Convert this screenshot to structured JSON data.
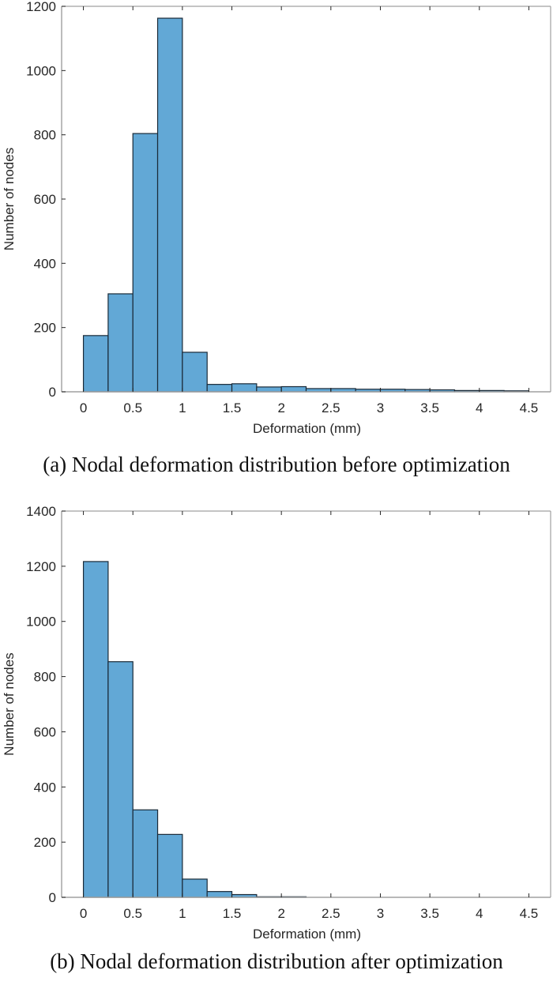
{
  "colors": {
    "bar_fill": "#62a8d6",
    "bar_edge": "#1a2a38",
    "axis": "#262626",
    "axis_box": "#a0a0a0"
  },
  "chart_data": [
    {
      "type": "bar",
      "subtype": "histogram",
      "caption": "(a) Nodal deformation distribution before optimization",
      "xlabel": "Deformation (mm)",
      "ylabel": "Number of nodes",
      "xlim": [
        -0.22,
        4.72
      ],
      "ylim": [
        0,
        1200
      ],
      "xticks": [
        0,
        0.5,
        1,
        1.5,
        2,
        2.5,
        3,
        3.5,
        4,
        4.5
      ],
      "xtick_labels": [
        "0",
        "0.5",
        "1",
        "1.5",
        "2",
        "2.5",
        "3",
        "3.5",
        "4",
        "4.5"
      ],
      "yticks": [
        0,
        200,
        400,
        600,
        800,
        1000,
        1200
      ],
      "ytick_labels": [
        "0",
        "200",
        "400",
        "600",
        "800",
        "1000",
        "1200"
      ],
      "bin_edges": [
        0,
        0.25,
        0.5,
        0.75,
        1.0,
        1.25,
        1.5,
        1.75,
        2.0,
        2.25,
        2.5,
        2.75,
        3.0,
        3.25,
        3.5,
        3.75,
        4.0,
        4.25,
        4.5
      ],
      "values": [
        175,
        305,
        804,
        1163,
        123,
        23,
        25,
        15,
        16,
        10,
        10,
        8,
        8,
        7,
        6,
        4,
        4,
        3
      ],
      "grid": false,
      "legend": "none"
    },
    {
      "type": "bar",
      "subtype": "histogram",
      "caption": "(b) Nodal deformation distribution after optimization",
      "xlabel": "Deformation (mm)",
      "ylabel": "Number of nodes",
      "xlim": [
        -0.22,
        4.72
      ],
      "ylim": [
        0,
        1400
      ],
      "xticks": [
        0,
        0.5,
        1,
        1.5,
        2,
        2.5,
        3,
        3.5,
        4,
        4.5
      ],
      "xtick_labels": [
        "0",
        "0.5",
        "1",
        "1.5",
        "2",
        "2.5",
        "3",
        "3.5",
        "4",
        "4.5"
      ],
      "yticks": [
        0,
        200,
        400,
        600,
        800,
        1000,
        1200,
        1400
      ],
      "ytick_labels": [
        "0",
        "200",
        "400",
        "600",
        "800",
        "1000",
        "1200",
        "1400"
      ],
      "bin_edges": [
        0,
        0.25,
        0.5,
        0.75,
        1.0,
        1.25,
        1.5,
        1.75,
        2.0,
        2.25
      ],
      "values": [
        1217,
        854,
        317,
        228,
        66,
        21,
        10,
        2,
        2
      ],
      "grid": false,
      "legend": "none"
    }
  ]
}
